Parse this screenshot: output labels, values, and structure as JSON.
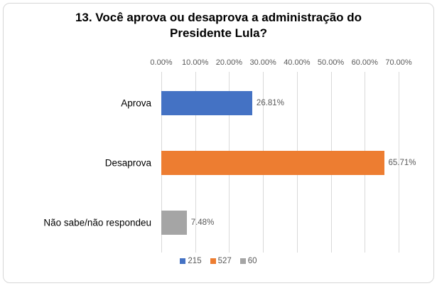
{
  "chart_data": {
    "type": "bar",
    "orientation": "horizontal",
    "title": "13. Você aprova ou desaprova a administração do Presidente Lula?",
    "categories": [
      "Aprova",
      "Desaprova",
      "Não sabe/não respondeu"
    ],
    "values": [
      26.81,
      65.71,
      7.48
    ],
    "value_labels": [
      "26.81%",
      "65.71%",
      "7.48%"
    ],
    "bar_colors": [
      "#4472c4",
      "#ed7d31",
      "#a5a5a5"
    ],
    "xlabel": "",
    "ylabel": "",
    "x_axis": {
      "position": "top",
      "min": 0,
      "max": 70,
      "tick_labels": [
        "0.00%",
        "10.00%",
        "20.00%",
        "30.00%",
        "40.00%",
        "50.00%",
        "60.00%",
        "70.00%"
      ],
      "tick_values": [
        0,
        10,
        20,
        30,
        40,
        50,
        60,
        70
      ]
    },
    "grid": true,
    "legend_position": "bottom",
    "legend": [
      {
        "label": "215",
        "color": "#4472c4"
      },
      {
        "label": "527",
        "color": "#ed7d31"
      },
      {
        "label": "60",
        "color": "#a5a5a5"
      }
    ],
    "colors": {
      "gridline": "#d9d9d9",
      "axis_text": "#595959",
      "data_label_text": "#595959",
      "legend_text": "#595959",
      "frame_border": "#d7d7d7",
      "background": "#ffffff"
    }
  }
}
